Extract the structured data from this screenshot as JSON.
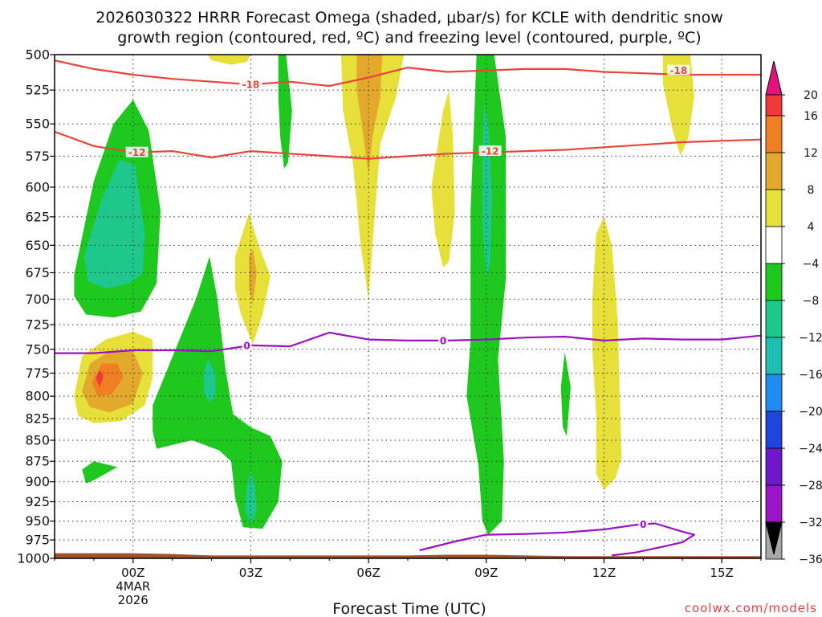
{
  "chart_data": {
    "type": "time-height contour",
    "title_line1": "2026030322 HRRR Forecast Omega (shaded, μbar/s) for KCLE with dendritic snow",
    "title_line2": "growth region (contoured, red, ºC) and freezing level (contoured, purple, ºC)",
    "xlabel": "Forecast Time (UTC)",
    "credit": "coolwx.com/models",
    "xlim_hours": [
      -2,
      16
    ],
    "ylim_mb": [
      500,
      1000
    ],
    "y_ticks": [
      500,
      525,
      550,
      575,
      600,
      625,
      650,
      675,
      700,
      725,
      750,
      775,
      800,
      825,
      850,
      875,
      900,
      925,
      950,
      975,
      1000
    ],
    "x_ticks": [
      {
        "hour": 0,
        "label": "00Z",
        "sub1": "4MAR",
        "sub2": "2026"
      },
      {
        "hour": 3,
        "label": "03Z"
      },
      {
        "hour": 6,
        "label": "06Z"
      },
      {
        "hour": 9,
        "label": "09Z"
      },
      {
        "hour": 12,
        "label": "12Z"
      },
      {
        "hour": 15,
        "label": "15Z"
      }
    ],
    "colorbar": {
      "levels": [
        20,
        16,
        12,
        8,
        4,
        -4,
        -8,
        -12,
        -16,
        -20,
        -24,
        -28,
        -32,
        -36
      ],
      "labels": [
        "20",
        "16",
        "12",
        "8",
        "4",
        "−4",
        "−8",
        "−12",
        "−16",
        "−20",
        "−24",
        "−28",
        "−32",
        "−36"
      ],
      "top_color": "#e8107a",
      "bottom_color": "#000000",
      "colors": [
        "#f03a3a",
        "#ef7f22",
        "#e2a92c",
        "#e8e03a",
        "#ffffff",
        "#1ec81e",
        "#1ec88c",
        "#1ebeb4",
        "#1e8cf0",
        "#1e46dc",
        "#6e18c8",
        "#9b14c8",
        "#a8a8a8"
      ]
    },
    "series": [
      {
        "name": "-18",
        "color": "#e8443c",
        "x": [
          -2,
          -1,
          0,
          1,
          2,
          3,
          4,
          5,
          6,
          7,
          8,
          9,
          10,
          11,
          12,
          13,
          14,
          15,
          16
        ],
        "y": [
          504,
          510,
          514,
          517,
          519,
          521,
          519,
          522,
          516,
          509,
          512,
          511,
          510,
          510,
          512,
          513,
          514,
          514,
          514
        ],
        "labels": [
          {
            "x": 3.0,
            "y": 521,
            "text": "-18"
          },
          {
            "x": 13.9,
            "y": 511,
            "text": "-18"
          }
        ]
      },
      {
        "name": "-12",
        "color": "#e8443c",
        "x": [
          -2,
          -1,
          0,
          1,
          2,
          3,
          4,
          5,
          6,
          7,
          8,
          9,
          10,
          11,
          12,
          13,
          14,
          15,
          16
        ],
        "y": [
          556,
          567,
          572,
          571,
          576,
          571,
          573,
          575,
          577,
          575,
          573,
          572,
          571,
          570,
          568,
          566,
          564,
          563,
          562
        ],
        "labels": [
          {
            "x": 0.1,
            "y": 572,
            "text": "-12"
          },
          {
            "x": 9.1,
            "y": 571,
            "text": "-12"
          }
        ]
      },
      {
        "name": "0",
        "color": "#9a12c0",
        "x": [
          -2,
          -1,
          0,
          1,
          2,
          3,
          4,
          5,
          6,
          7,
          8,
          9,
          10,
          11,
          12,
          13,
          14,
          15,
          16
        ],
        "y": [
          754,
          754,
          751,
          751,
          752,
          746,
          747,
          733,
          740,
          741,
          741,
          740,
          738,
          737,
          741,
          739,
          740,
          740,
          736
        ],
        "labels": [
          {
            "x": 2.9,
            "y": 746,
            "text": "0"
          },
          {
            "x": 7.9,
            "y": 741,
            "text": "0"
          }
        ]
      },
      {
        "name": "0 (near surface)",
        "color": "#9a12c0",
        "x": [
          7.3,
          8.2,
          9.0,
          10.0,
          11.0,
          12.0,
          12.8,
          13.3,
          14.0,
          14.3,
          14.0,
          13.5,
          12.8,
          12.2
        ],
        "y": [
          989,
          977,
          968,
          967,
          965,
          961,
          955,
          953,
          964,
          968,
          978,
          984,
          992,
          996
        ],
        "labels": [
          {
            "x": 13.0,
            "y": 954,
            "text": "0"
          }
        ]
      }
    ],
    "omega_areas": [
      {
        "value": -8,
        "color": "#1ec81e",
        "pts": [
          [
            -1.5,
            677
          ],
          [
            -1.0,
            595
          ],
          [
            -0.5,
            550
          ],
          [
            0.0,
            532
          ],
          [
            0.4,
            555
          ],
          [
            0.7,
            620
          ],
          [
            0.6,
            685
          ],
          [
            0.2,
            712
          ],
          [
            -0.5,
            718
          ],
          [
            -1.2,
            715
          ],
          [
            -1.5,
            697
          ]
        ]
      },
      {
        "value": -12,
        "color": "#1ec88c",
        "pts": [
          [
            -1.25,
            660
          ],
          [
            -0.8,
            610
          ],
          [
            -0.35,
            578
          ],
          [
            0.05,
            582
          ],
          [
            0.3,
            640
          ],
          [
            0.25,
            675
          ],
          [
            -0.1,
            685
          ],
          [
            -0.7,
            690
          ],
          [
            -1.15,
            683
          ]
        ]
      },
      {
        "value": -8,
        "color": "#1ec81e",
        "pts": [
          [
            0.5,
            810
          ],
          [
            1.0,
            758
          ],
          [
            1.6,
            700
          ],
          [
            1.95,
            660
          ],
          [
            2.15,
            700
          ],
          [
            2.35,
            770
          ],
          [
            2.55,
            820
          ],
          [
            3.0,
            835
          ],
          [
            3.5,
            845
          ],
          [
            3.8,
            875
          ],
          [
            3.7,
            925
          ],
          [
            3.3,
            960
          ],
          [
            2.8,
            958
          ],
          [
            2.6,
            920
          ],
          [
            2.5,
            875
          ],
          [
            2.2,
            862
          ],
          [
            1.5,
            850
          ],
          [
            0.6,
            860
          ],
          [
            0.5,
            840
          ]
        ]
      },
      {
        "value": -12,
        "color": "#1ec88c",
        "pts": [
          [
            1.8,
            775
          ],
          [
            1.9,
            760
          ],
          [
            2.1,
            775
          ],
          [
            2.1,
            800
          ],
          [
            1.95,
            807
          ],
          [
            1.8,
            795
          ]
        ]
      },
      {
        "value": -12,
        "color": "#1ec88c",
        "pts": [
          [
            2.9,
            905
          ],
          [
            3.0,
            885
          ],
          [
            3.1,
            905
          ],
          [
            3.15,
            935
          ],
          [
            3.0,
            955
          ],
          [
            2.85,
            935
          ]
        ]
      },
      {
        "value": -8,
        "color": "#1ec81e",
        "pts": [
          [
            -1.3,
            885
          ],
          [
            -1.0,
            875
          ],
          [
            -0.4,
            882
          ],
          [
            -1.0,
            898
          ],
          [
            -1.2,
            902
          ]
        ]
      },
      {
        "value": -8,
        "color": "#1ec81e",
        "pts": [
          [
            3.7,
            500
          ],
          [
            3.9,
            500
          ],
          [
            4.05,
            540
          ],
          [
            3.95,
            580
          ],
          [
            3.85,
            585
          ],
          [
            3.75,
            560
          ],
          [
            3.7,
            530
          ]
        ]
      },
      {
        "value": -8,
        "color": "#1ec81e",
        "pts": [
          [
            8.75,
            500
          ],
          [
            9.2,
            500
          ],
          [
            9.5,
            560
          ],
          [
            9.5,
            680
          ],
          [
            9.3,
            760
          ],
          [
            9.45,
            875
          ],
          [
            9.4,
            950
          ],
          [
            9.05,
            968
          ],
          [
            8.9,
            950
          ],
          [
            8.8,
            880
          ],
          [
            8.5,
            800
          ],
          [
            8.6,
            740
          ],
          [
            8.6,
            620
          ],
          [
            8.7,
            540
          ]
        ]
      },
      {
        "value": -12,
        "color": "#1ec88c",
        "pts": [
          [
            8.95,
            535
          ],
          [
            9.05,
            550
          ],
          [
            9.15,
            610
          ],
          [
            9.1,
            665
          ],
          [
            9.0,
            680
          ],
          [
            8.9,
            630
          ],
          [
            8.9,
            570
          ]
        ]
      },
      {
        "value": -8,
        "color": "#1ec81e",
        "pts": [
          [
            10.9,
            790
          ],
          [
            11.0,
            753
          ],
          [
            11.15,
            790
          ],
          [
            11.05,
            845
          ],
          [
            10.95,
            835
          ]
        ]
      },
      {
        "value": 4,
        "color": "#e8e03a",
        "pts": [
          [
            -1.5,
            800
          ],
          [
            -1.3,
            757
          ],
          [
            -0.7,
            740
          ],
          [
            0.0,
            732
          ],
          [
            0.5,
            740
          ],
          [
            0.5,
            780
          ],
          [
            0.3,
            810
          ],
          [
            -0.3,
            828
          ],
          [
            -1.0,
            830
          ],
          [
            -1.4,
            822
          ]
        ]
      },
      {
        "value": 8,
        "color": "#e2a92c",
        "pts": [
          [
            -1.3,
            795
          ],
          [
            -1.1,
            765
          ],
          [
            -0.6,
            752
          ],
          [
            0.0,
            752
          ],
          [
            0.25,
            775
          ],
          [
            0.0,
            808
          ],
          [
            -0.6,
            818
          ],
          [
            -1.1,
            812
          ]
        ]
      },
      {
        "value": 12,
        "color": "#ef7f22",
        "pts": [
          [
            -1.05,
            785
          ],
          [
            -0.8,
            765
          ],
          [
            -0.4,
            765
          ],
          [
            -0.25,
            780
          ],
          [
            -0.55,
            798
          ],
          [
            -0.9,
            800
          ]
        ]
      },
      {
        "value": 16,
        "color": "#f03a3a",
        "pts": [
          [
            -0.95,
            780
          ],
          [
            -0.85,
            772
          ],
          [
            -0.75,
            778
          ],
          [
            -0.85,
            790
          ]
        ]
      },
      {
        "value": 4,
        "color": "#e8e03a",
        "pts": [
          [
            1.9,
            500
          ],
          [
            3.0,
            500
          ],
          [
            2.9,
            505
          ],
          [
            2.5,
            507
          ],
          [
            2.0,
            504
          ]
        ]
      },
      {
        "value": 4,
        "color": "#e8e03a",
        "pts": [
          [
            2.6,
            660
          ],
          [
            2.95,
            622
          ],
          [
            3.2,
            650
          ],
          [
            3.5,
            678
          ],
          [
            3.3,
            715
          ],
          [
            3.05,
            745
          ],
          [
            2.75,
            715
          ],
          [
            2.6,
            690
          ]
        ]
      },
      {
        "value": 8,
        "color": "#e2a92c",
        "pts": [
          [
            2.95,
            660
          ],
          [
            3.05,
            653
          ],
          [
            3.15,
            675
          ],
          [
            3.05,
            705
          ],
          [
            2.95,
            690
          ]
        ]
      },
      {
        "value": 4,
        "color": "#e8e03a",
        "pts": [
          [
            5.3,
            500
          ],
          [
            6.9,
            500
          ],
          [
            6.7,
            530
          ],
          [
            6.3,
            565
          ],
          [
            6.1,
            650
          ],
          [
            6.0,
            700
          ],
          [
            5.8,
            650
          ],
          [
            5.6,
            580
          ],
          [
            5.35,
            540
          ]
        ]
      },
      {
        "value": 8,
        "color": "#e2a92c",
        "pts": [
          [
            5.7,
            500
          ],
          [
            6.35,
            500
          ],
          [
            6.3,
            530
          ],
          [
            6.1,
            560
          ],
          [
            6.0,
            590
          ],
          [
            5.85,
            555
          ],
          [
            5.7,
            525
          ]
        ]
      },
      {
        "value": 4,
        "color": "#e8e03a",
        "pts": [
          [
            7.6,
            600
          ],
          [
            7.9,
            540
          ],
          [
            8.05,
            525
          ],
          [
            8.15,
            560
          ],
          [
            8.2,
            620
          ],
          [
            8.05,
            665
          ],
          [
            7.9,
            670
          ],
          [
            7.7,
            640
          ]
        ]
      },
      {
        "value": 4,
        "color": "#e8e03a",
        "pts": [
          [
            11.7,
            700
          ],
          [
            11.8,
            640
          ],
          [
            12.0,
            625
          ],
          [
            12.2,
            650
          ],
          [
            12.35,
            720
          ],
          [
            12.4,
            800
          ],
          [
            12.45,
            870
          ],
          [
            12.3,
            895
          ],
          [
            12.0,
            910
          ],
          [
            11.8,
            890
          ],
          [
            11.8,
            820
          ],
          [
            11.7,
            750
          ]
        ]
      },
      {
        "value": 4,
        "color": "#e8e03a",
        "pts": [
          [
            13.5,
            500
          ],
          [
            14.2,
            500
          ],
          [
            14.3,
            530
          ],
          [
            14.15,
            560
          ],
          [
            13.95,
            575
          ],
          [
            13.75,
            555
          ],
          [
            13.5,
            520
          ]
        ]
      }
    ],
    "terrain": {
      "color": "#a0522d",
      "levels": [
        [
          -2,
          993
        ],
        [
          0,
          993
        ],
        [
          1,
          994
        ],
        [
          2,
          996
        ],
        [
          3,
          996
        ],
        [
          5,
          996
        ],
        [
          6,
          996
        ],
        [
          7,
          996
        ],
        [
          8,
          995
        ],
        [
          9,
          995
        ],
        [
          10,
          996
        ],
        [
          11,
          997
        ],
        [
          13,
          997
        ],
        [
          14,
          997
        ],
        [
          16,
          997
        ]
      ]
    }
  }
}
